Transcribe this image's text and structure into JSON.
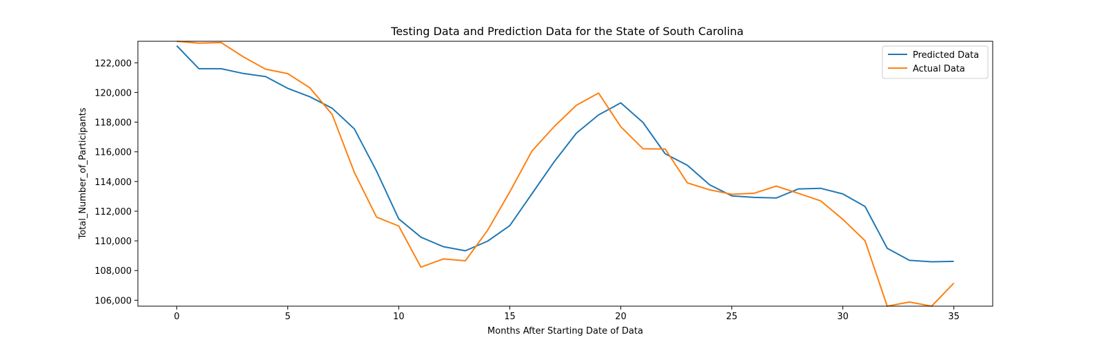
{
  "chart_data": {
    "type": "line",
    "title": "Testing Data and Prediction Data for the State of South Carolina",
    "xlabel": "Months After Starting Date of Data",
    "ylabel": "Total_Number_of_Participants",
    "xlim": [
      -1.75,
      36.75
    ],
    "ylim": [
      105600,
      123450
    ],
    "x_ticks": [
      0,
      5,
      10,
      15,
      20,
      25,
      30,
      35
    ],
    "x_tick_labels": [
      "0",
      "5",
      "10",
      "15",
      "20",
      "25",
      "30",
      "35"
    ],
    "y_ticks": [
      106000,
      108000,
      110000,
      112000,
      114000,
      116000,
      118000,
      120000,
      122000
    ],
    "y_tick_labels": [
      "106,000",
      "108,000",
      "110,000",
      "112,000",
      "114,000",
      "116,000",
      "118,000",
      "120,000",
      "122,000"
    ],
    "grid": false,
    "legend_position": "top-right",
    "x": [
      0,
      1,
      2,
      3,
      4,
      5,
      6,
      7,
      8,
      9,
      10,
      11,
      12,
      13,
      14,
      15,
      16,
      17,
      18,
      19,
      20,
      21,
      22,
      23,
      24,
      25,
      26,
      27,
      28,
      29,
      30,
      31,
      32,
      33,
      34,
      35
    ],
    "series": [
      {
        "name": "Predicted Data",
        "color": "#1f77b4",
        "values": [
          123150,
          121600,
          121600,
          121280,
          121070,
          120280,
          119710,
          118940,
          117550,
          114700,
          111480,
          110250,
          109610,
          109330,
          109980,
          111030,
          113180,
          115330,
          117260,
          118490,
          119300,
          117980,
          115870,
          115090,
          113780,
          113030,
          112930,
          112890,
          113500,
          113540,
          113160,
          112320,
          109500,
          108690,
          108590,
          108620
        ]
      },
      {
        "name": "Actual Data",
        "color": "#ff7f0e",
        "values": [
          123450,
          123320,
          123360,
          122400,
          121570,
          121270,
          120310,
          118520,
          114620,
          111600,
          111000,
          108230,
          108780,
          108660,
          110710,
          113300,
          116060,
          117700,
          119140,
          119960,
          117690,
          116210,
          116190,
          113910,
          113440,
          113140,
          113210,
          113690,
          113200,
          112700,
          111450,
          110010,
          105600,
          105880,
          105600,
          107150
        ]
      }
    ]
  }
}
